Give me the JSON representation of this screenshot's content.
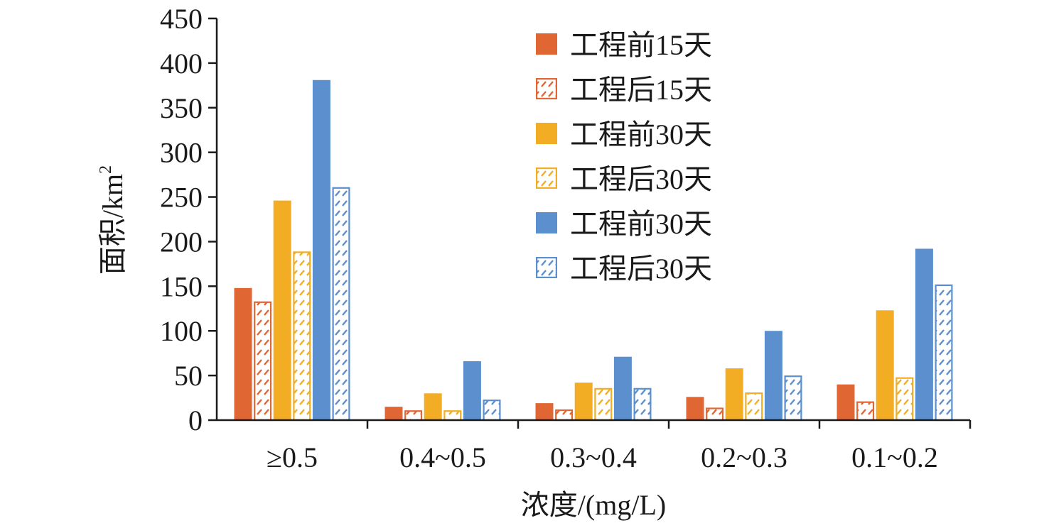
{
  "chart_data": {
    "type": "bar",
    "xlabel": "浓度/(mg/L)",
    "ylabel": "面积/km",
    "ylabel_sup": "2",
    "ylim": [
      0,
      450
    ],
    "yticks": [
      0,
      50,
      100,
      150,
      200,
      250,
      300,
      350,
      400,
      450
    ],
    "grid": false,
    "legend_position": "top-right",
    "categories": [
      "≥0.5",
      "0.4~0.5",
      "0.3~0.4",
      "0.2~0.3",
      "0.1~0.2"
    ],
    "series": [
      {
        "name": "工程前15天",
        "color": "#e06634",
        "style": "solid",
        "values": [
          148,
          15,
          19,
          26,
          40
        ]
      },
      {
        "name": "工程后15天",
        "color": "#e06634",
        "style": "hatched",
        "values": [
          133,
          11,
          12,
          14,
          21
        ]
      },
      {
        "name": "工程前30天",
        "color": "#f2ad24",
        "style": "solid",
        "values": [
          246,
          30,
          42,
          58,
          123
        ]
      },
      {
        "name": "工程后30天",
        "color": "#f2ad24",
        "style": "hatched",
        "values": [
          189,
          11,
          36,
          31,
          48
        ]
      },
      {
        "name": "工程前30天",
        "color": "#5b8fcd",
        "style": "solid",
        "values": [
          381,
          66,
          71,
          100,
          192
        ]
      },
      {
        "name": "工程后30天",
        "color": "#5b8fcd",
        "style": "hatched",
        "values": [
          261,
          23,
          36,
          50,
          152
        ]
      }
    ]
  }
}
